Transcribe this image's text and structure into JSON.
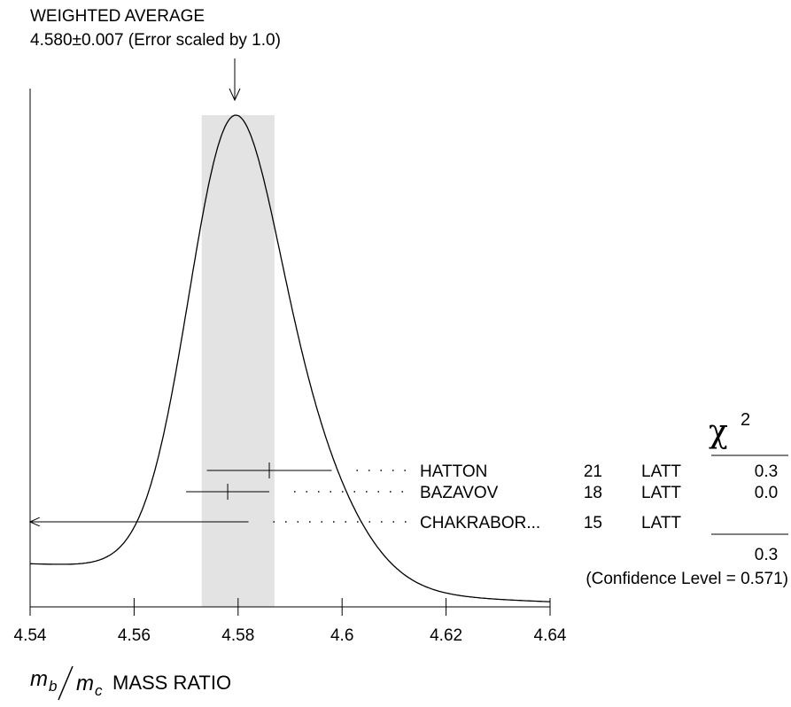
{
  "chart_data": {
    "type": "ideogram",
    "title": "WEIGHTED AVERAGE",
    "subtitle": "4.580±0.007 (Error scaled by 1.0)",
    "average": 4.58,
    "average_error": 0.007,
    "xlim": [
      4.54,
      4.64
    ],
    "xticks": [
      4.54,
      4.56,
      4.58,
      4.6,
      4.62,
      4.64
    ],
    "x_label": {
      "numerator": "m",
      "numerator_sub": "b",
      "denominator": "m",
      "denominator_sub": "c",
      "text": "MASS RATIO"
    },
    "chi2_header": "χ",
    "chi2_header_sup": "2",
    "measurements": [
      {
        "name": "HATTON",
        "year": 21,
        "technique": "LATT",
        "value": 4.586,
        "error": 0.012,
        "chi2": "0.3"
      },
      {
        "name": "BAZAVOV",
        "year": 18,
        "technique": "LATT",
        "value": 4.578,
        "error": 0.008,
        "chi2": "0.0"
      },
      {
        "name": "CHAKRABOR...",
        "year": 15,
        "technique": "LATT",
        "value": 4.528,
        "error": 0.054
      }
    ],
    "chi2_total": "0.3",
    "confidence_level": "(Confidence Level = 0.571)"
  }
}
